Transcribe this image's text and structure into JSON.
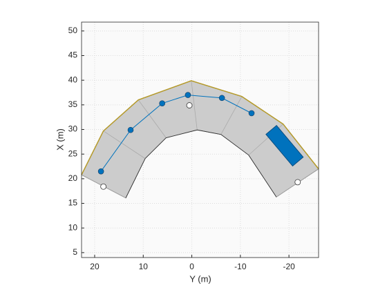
{
  "chart_data": {
    "type": "scatter",
    "xlabel": "Y (m)",
    "ylabel": "X (m)",
    "xlim": [
      22.7,
      -26.1
    ],
    "ylim": [
      4,
      51.8
    ],
    "xticks": [
      20,
      10,
      0,
      -10,
      -20
    ],
    "yticks": [
      5,
      10,
      15,
      20,
      25,
      30,
      35,
      40,
      45,
      50
    ],
    "grid": true,
    "road_color": "#cccccc",
    "road_edge_color": "#b59a2a",
    "road_outer": {
      "x": [
        22.7,
        18.2,
        11.0,
        0.1,
        -10.3,
        -18.8,
        -26.1
      ],
      "values": [
        20.8,
        29.7,
        36.0,
        39.9,
        36.7,
        31.1,
        22.0
      ]
    },
    "road_inner": {
      "x": [
        13.6,
        9.6,
        5.3,
        -1.1,
        -6.0,
        -11.7,
        -17.4
      ],
      "values": [
        16.1,
        24.1,
        28.3,
        29.9,
        29.0,
        24.8,
        16.3
      ]
    },
    "waypoints": {
      "color": "#0072bd",
      "x": [
        18.7,
        12.6,
        6.1,
        0.8,
        -6.2,
        -12.3
      ],
      "values": [
        21.5,
        29.9,
        35.3,
        37.0,
        36.4,
        33.3
      ]
    },
    "vehicle": {
      "color": "#0072bd",
      "x": -19.1,
      "value": 26.7
    },
    "actors": {
      "color": "#ffffff",
      "x": [
        18.2,
        0.5,
        -21.8
      ],
      "values": [
        18.4,
        34.9,
        19.3
      ]
    }
  }
}
